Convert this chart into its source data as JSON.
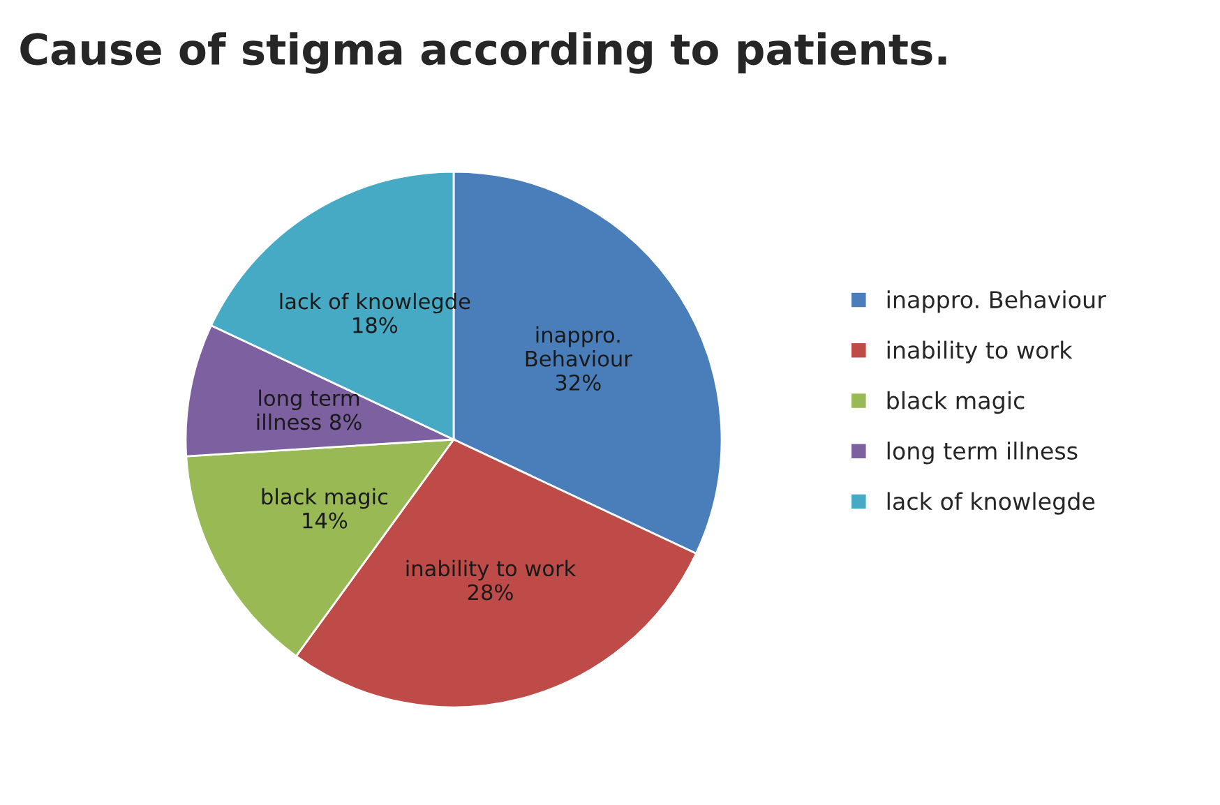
{
  "chart_data": {
    "type": "pie",
    "title": "Cause of stigma according to patients.",
    "categories": [
      "inappro. Behaviour",
      "inability to work",
      "black magic",
      "long term illness",
      "lack of knowlegde"
    ],
    "values": [
      32,
      28,
      14,
      8,
      18
    ],
    "colors": [
      "#4a7ebb",
      "#be4b48",
      "#98b954",
      "#7d60a0",
      "#46aac5"
    ],
    "value_labels": [
      "inappro.\nBehaviour\n32%",
      "inability to work\n28%",
      "black magic\n14%",
      "long term\nillness 8%",
      "lack of knowlegde\n18%"
    ],
    "legend": "right"
  }
}
